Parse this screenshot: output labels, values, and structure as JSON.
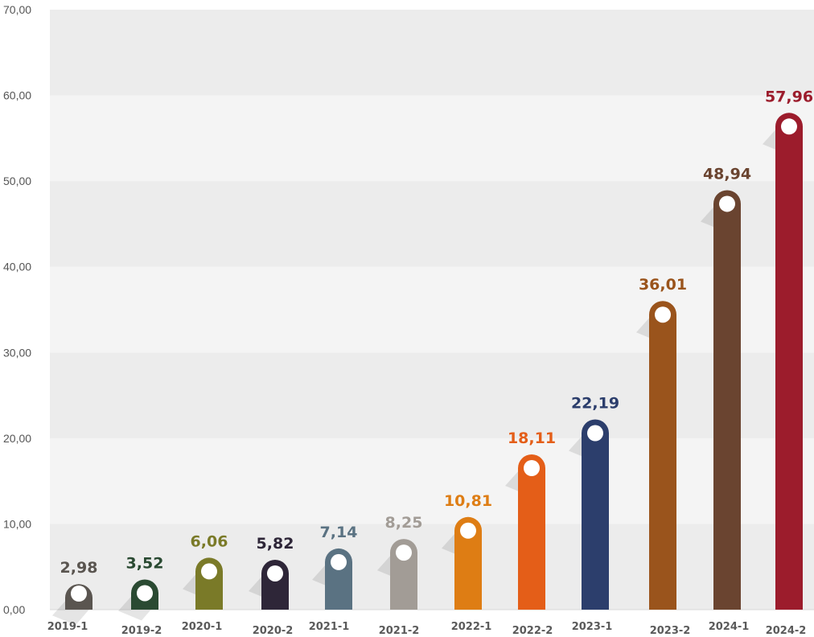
{
  "chart_data": {
    "type": "bar",
    "title": "",
    "xlabel": "",
    "ylabel": "",
    "ylim": [
      0,
      70
    ],
    "yticks": [
      "0,00",
      "10,00",
      "20,00",
      "30,00",
      "40,00",
      "50,00",
      "60,00",
      "70,00"
    ],
    "grid": "alternating horizontal bands",
    "legend": "none",
    "categories": [
      "2019-1",
      "2019-2",
      "2020-1",
      "2020-2",
      "2021-1",
      "2021-2",
      "2022-1",
      "2022-2",
      "2023-1",
      "2023-2",
      "2024-1",
      "2024-2"
    ],
    "values": [
      2.98,
      3.52,
      6.06,
      5.82,
      7.14,
      8.25,
      10.81,
      18.11,
      22.19,
      36.01,
      48.94,
      57.96
    ],
    "value_labels": [
      "2,98",
      "3,52",
      "6,06",
      "5,82",
      "7,14",
      "8,25",
      "10,81",
      "18,11",
      "22,19",
      "36,01",
      "48,94",
      "57,96"
    ],
    "colors": [
      "#5a5550",
      "#2a4a32",
      "#7a7a28",
      "#2e2638",
      "#5a7282",
      "#a29c96",
      "#de7d14",
      "#e45e18",
      "#2c3e6c",
      "#9a541c",
      "#6a4430",
      "#9c1c2c"
    ]
  }
}
